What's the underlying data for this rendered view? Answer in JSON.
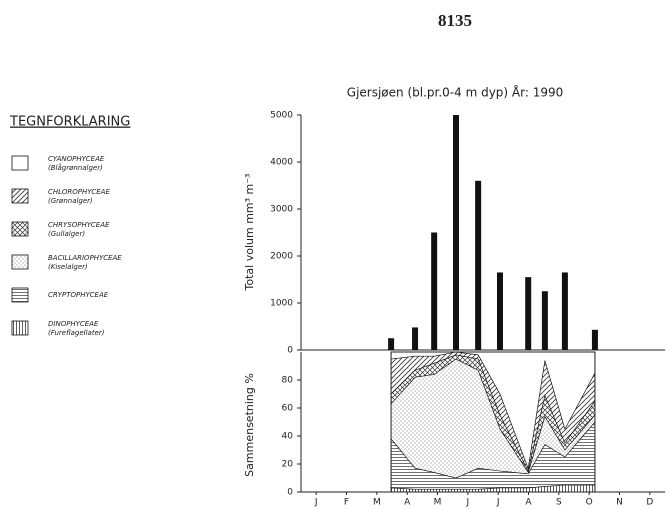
{
  "header": {
    "page": "8135"
  },
  "chart_data": [
    {
      "type": "bar",
      "title": "Gjersjøen (bl.pr.0-4 m dyp)   År: 1990",
      "ylabel": "Total volum mm³ m⁻³",
      "x": [
        2.97,
        3.76,
        4.39,
        5.11,
        5.84,
        6.56,
        7.49,
        8.04,
        8.7,
        9.69
      ],
      "values": [
        250,
        480,
        2500,
        5000,
        3600,
        1650,
        1550,
        1250,
        1650,
        430
      ],
      "color": "#111111",
      "xlim": [
        0,
        12
      ],
      "ylim": [
        0,
        5000
      ],
      "yticks": [
        0,
        1000,
        2000,
        3000,
        4000,
        5000
      ]
    },
    {
      "type": "stacked_area",
      "ylabel": "Sammensetning %",
      "legend_title": "TEGNFORKLARING",
      "x": [
        2.97,
        3.76,
        4.39,
        5.11,
        5.84,
        6.56,
        7.49,
        8.04,
        8.7,
        9.69
      ],
      "series": [
        {
          "name": "DINOPHYCEAE",
          "common_name": "(Fureflagellater)",
          "pattern": "vertical",
          "color": "#111111",
          "values": [
            3,
            2,
            2,
            2,
            2,
            3,
            3,
            4,
            5,
            5
          ]
        },
        {
          "name": "CRYPTOPHYCEAE",
          "pattern": "horizontal",
          "color": "#111111",
          "values": [
            35,
            15,
            12,
            8,
            15,
            12,
            10,
            30,
            20,
            45
          ]
        },
        {
          "name": "BACILLARIOPHYCEAE",
          "common_name": "(Kiselalger)",
          "pattern": "dots",
          "color": "#111111",
          "values": [
            25,
            65,
            70,
            85,
            70,
            30,
            1,
            20,
            5,
            5
          ]
        },
        {
          "name": "CHRYSOPHYCEAE",
          "common_name": "(Gullalger)",
          "pattern": "crosshatch",
          "color": "#111111",
          "values": [
            7,
            5,
            8,
            3,
            8,
            10,
            1,
            15,
            5,
            10
          ]
        },
        {
          "name": "CHLOROPHYCEAE",
          "common_name": "(Grønnalger)",
          "pattern": "diagonal",
          "color": "#111111",
          "values": [
            25,
            10,
            5,
            2,
            3,
            15,
            2,
            25,
            10,
            20
          ]
        },
        {
          "name": "CYANOPHYCEAE",
          "common_name": "(Blågrønnalger)",
          "pattern": "none",
          "color": "#111111",
          "values": [
            5,
            3,
            3,
            0,
            2,
            30,
            83,
            6,
            55,
            15
          ]
        }
      ],
      "legend_order": [
        5,
        4,
        3,
        2,
        1,
        0
      ],
      "xlim": [
        0,
        12
      ],
      "xticks": [
        {
          "value": 0.5,
          "label": "J"
        },
        {
          "value": 1.5,
          "label": "F"
        },
        {
          "value": 2.5,
          "label": "M"
        },
        {
          "value": 3.5,
          "label": "A"
        },
        {
          "value": 4.5,
          "label": "M"
        },
        {
          "value": 5.5,
          "label": "J"
        },
        {
          "value": 6.5,
          "label": "J"
        },
        {
          "value": 7.5,
          "label": "A"
        },
        {
          "value": 8.5,
          "label": "S"
        },
        {
          "value": 9.5,
          "label": "O"
        },
        {
          "value": 10.5,
          "label": "N"
        },
        {
          "value": 11.5,
          "label": "D"
        }
      ],
      "ylim": [
        0,
        100
      ],
      "yticks": [
        0,
        20,
        40,
        60,
        80
      ]
    }
  ]
}
